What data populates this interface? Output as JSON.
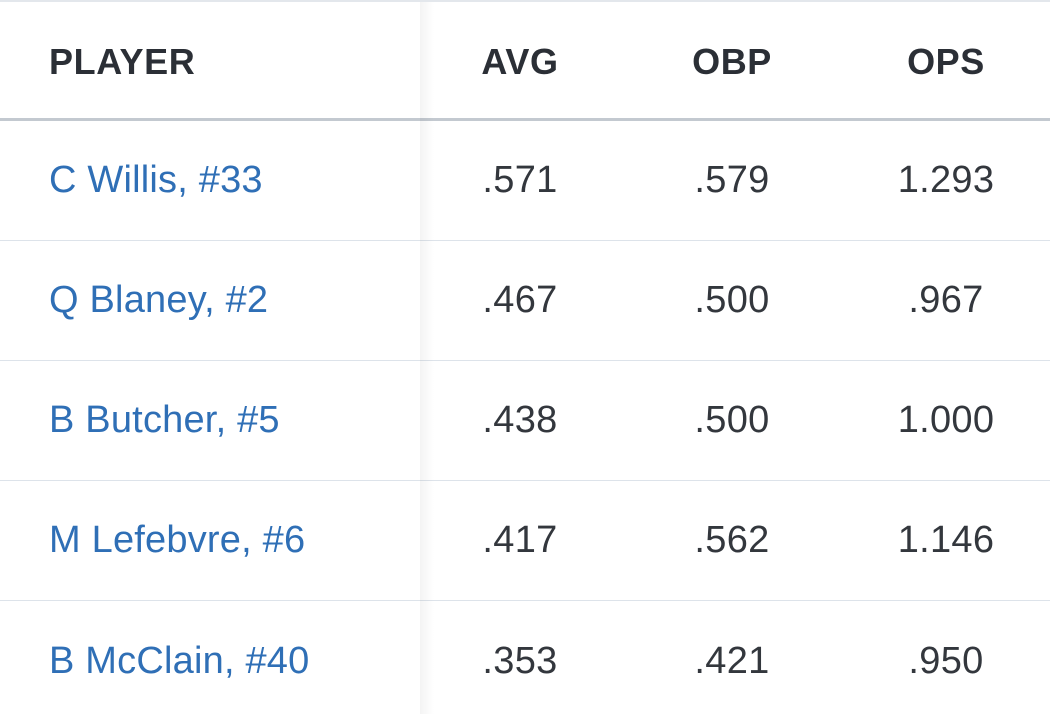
{
  "table": {
    "columns": {
      "player": "PLAYER",
      "avg": "AVG",
      "obp": "OBP",
      "ops": "OPS"
    },
    "rows": [
      {
        "player": "C Willis, #33",
        "avg": ".571",
        "obp": ".579",
        "ops": "1.293"
      },
      {
        "player": "Q Blaney, #2",
        "avg": ".467",
        "obp": ".500",
        "ops": ".967"
      },
      {
        "player": "B Butcher, #5",
        "avg": ".438",
        "obp": ".500",
        "ops": "1.000"
      },
      {
        "player": "M Lefebvre, #6",
        "avg": ".417",
        "obp": ".562",
        "ops": "1.146"
      },
      {
        "player": "B McClain, #40",
        "avg": ".353",
        "obp": ".421",
        "ops": ".950"
      }
    ]
  },
  "colors": {
    "player_link": "#2f6fb6",
    "text": "#33373d",
    "header_text": "#2b2f36",
    "row_divider": "#dde3ea",
    "header_divider": "#c3c9d0"
  }
}
